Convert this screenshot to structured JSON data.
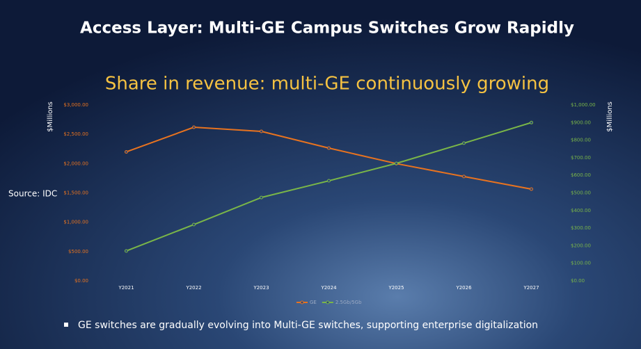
{
  "title": "Access Layer: Multi-GE Campus Switches Grow Rapidly",
  "source": "Source: IDC",
  "bullet": "GE switches are gradually evolving into Multi-GE switches, supporting enterprise digitalization",
  "chart_data": {
    "type": "line",
    "title": "Share in revenue: multi-GE continuously growing",
    "ylabel": "$Millions",
    "y2label": "$Millions",
    "categories": [
      "Y2021",
      "Y2022",
      "Y2023",
      "Y2024",
      "Y2025",
      "Y2026",
      "Y2027"
    ],
    "series": [
      {
        "name": "GE",
        "color": "#e8731f",
        "values": [
          2200,
          2620,
          2550,
          2265,
          2000,
          1780,
          1565
        ]
      },
      {
        "name": "2.5Gb/5Gb",
        "color": "#7ab648",
        "axis": "y2",
        "values": [
          170,
          320,
          474,
          569,
          668,
          783,
          900
        ]
      }
    ],
    "ylim": [
      0,
      3000
    ],
    "yticks": [
      {
        "value": 0,
        "label": "$0.00"
      },
      {
        "value": 500,
        "label": "$500.00"
      },
      {
        "value": 1000,
        "label": "$1,000.00"
      },
      {
        "value": 1500,
        "label": "$1,500.00"
      },
      {
        "value": 2000,
        "label": "$2,000.00"
      },
      {
        "value": 2500,
        "label": "$2,500.00"
      },
      {
        "value": 3000,
        "label": "$3,000.00"
      }
    ],
    "y2lim": [
      0,
      1000
    ],
    "y2ticks": [
      {
        "value": 0,
        "label": "$0.00"
      },
      {
        "value": 100,
        "label": "$100.00"
      },
      {
        "value": 200,
        "label": "$200.00"
      },
      {
        "value": 300,
        "label": "$300.00"
      },
      {
        "value": 400,
        "label": "$400.00"
      },
      {
        "value": 500,
        "label": "$500.00"
      },
      {
        "value": 600,
        "label": "$600.00"
      },
      {
        "value": 700,
        "label": "$700.00"
      },
      {
        "value": 800,
        "label": "$800.00"
      },
      {
        "value": 900,
        "label": "$900.00"
      },
      {
        "value": 1000,
        "label": "$1,000.00"
      }
    ],
    "legend": "bottom"
  }
}
